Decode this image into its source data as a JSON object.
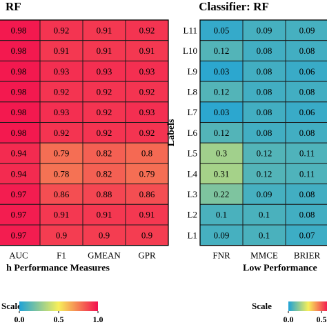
{
  "chart_data": [
    {
      "type": "heatmap",
      "title": "RF",
      "xlabel": "h Performance Measures",
      "ylabel": "",
      "x_categories": [
        "AUC",
        "F1",
        "GMEAN",
        "GPR"
      ],
      "y_categories": [
        "L11",
        "L10",
        "L9",
        "L8",
        "L7",
        "L6",
        "L5",
        "L4",
        "L3",
        "L2",
        "L1"
      ],
      "values": [
        [
          0.98,
          0.92,
          0.91,
          0.92
        ],
        [
          0.98,
          0.91,
          0.91,
          0.91
        ],
        [
          0.98,
          0.93,
          0.93,
          0.93
        ],
        [
          0.98,
          0.92,
          0.92,
          0.92
        ],
        [
          0.98,
          0.93,
          0.92,
          0.93
        ],
        [
          0.98,
          0.92,
          0.92,
          0.92
        ],
        [
          0.94,
          0.79,
          0.82,
          0.8
        ],
        [
          0.94,
          0.78,
          0.82,
          0.79
        ],
        [
          0.97,
          0.86,
          0.88,
          0.86
        ],
        [
          0.97,
          0.91,
          0.91,
          0.91
        ],
        [
          0.97,
          0.9,
          0.9,
          0.9
        ]
      ],
      "legend": {
        "title": "Scale",
        "ticks": [
          "0.0",
          "0.5",
          "1.0"
        ],
        "colors": [
          "#1fa2d6",
          "#f7ef5a",
          "#f3104f"
        ]
      }
    },
    {
      "type": "heatmap",
      "title": "Classifier: RF",
      "xlabel": "Low Performance",
      "ylabel": "Labels",
      "x_categories": [
        "FNR",
        "MMCE",
        "BRIER"
      ],
      "y_categories": [
        "L11",
        "L10",
        "L9",
        "L8",
        "L7",
        "L6",
        "L5",
        "L4",
        "L3",
        "L2",
        "L1"
      ],
      "values": [
        [
          0.05,
          0.09,
          0.09
        ],
        [
          0.12,
          0.08,
          0.08
        ],
        [
          0.03,
          0.08,
          0.06
        ],
        [
          0.12,
          0.08,
          0.08
        ],
        [
          0.03,
          0.08,
          0.06
        ],
        [
          0.12,
          0.08,
          0.08
        ],
        [
          0.3,
          0.12,
          0.11
        ],
        [
          0.31,
          0.12,
          0.11
        ],
        [
          0.22,
          0.09,
          0.08
        ],
        [
          0.1,
          0.1,
          0.08
        ],
        [
          0.09,
          0.1,
          0.07
        ]
      ],
      "legend": {
        "title": "Scale",
        "ticks": [
          "0.0",
          "0.5"
        ],
        "colors": [
          "#1fa2d6",
          "#f7ef5a",
          "#f3104f"
        ]
      }
    }
  ]
}
